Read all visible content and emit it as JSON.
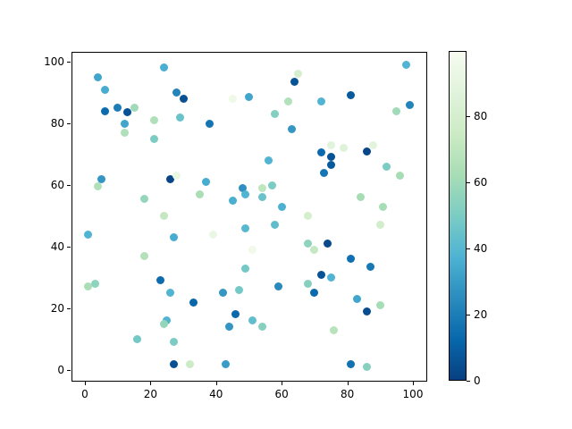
{
  "chart_data": {
    "type": "scatter",
    "title": "",
    "xlabel": "",
    "ylabel": "",
    "xlim": [
      -4.1,
      104.3
    ],
    "ylim": [
      -3.8,
      103.2
    ],
    "grid": false,
    "x_ticks": [
      "0",
      "20",
      "40",
      "60",
      "80",
      "100"
    ],
    "x_tick_values": [
      0,
      20,
      40,
      60,
      80,
      100
    ],
    "y_ticks": [
      "0",
      "20",
      "40",
      "60",
      "80",
      "100"
    ],
    "y_tick_values": [
      0,
      20,
      40,
      60,
      80,
      100
    ],
    "colorbar": {
      "ticks": [
        "0",
        "20",
        "40",
        "60",
        "80"
      ],
      "tick_values": [
        0,
        20,
        40,
        60,
        80
      ],
      "vmin": 0,
      "vmax": 99.6,
      "colormap": "GnBu_r",
      "stops": [
        {
          "p": 0.0,
          "c": "#084081"
        },
        {
          "p": 0.125,
          "c": "#0868ac"
        },
        {
          "p": 0.25,
          "c": "#2b8cbe"
        },
        {
          "p": 0.375,
          "c": "#4eb3d3"
        },
        {
          "p": 0.5,
          "c": "#7bccc4"
        },
        {
          "p": 0.625,
          "c": "#a8ddb5"
        },
        {
          "p": 0.75,
          "c": "#ccebc5"
        },
        {
          "p": 0.875,
          "c": "#e0f3db"
        },
        {
          "p": 1.0,
          "c": "#f7fcf0"
        }
      ]
    },
    "points": [
      [
        4,
        95,
        33
      ],
      [
        6,
        91,
        35
      ],
      [
        24,
        98,
        36
      ],
      [
        28,
        90,
        22
      ],
      [
        30,
        88,
        5
      ],
      [
        6,
        84,
        14
      ],
      [
        10,
        85,
        20
      ],
      [
        13,
        83.5,
        6
      ],
      [
        15,
        85,
        60
      ],
      [
        12,
        80,
        33
      ],
      [
        12,
        77,
        65
      ],
      [
        21,
        81,
        65
      ],
      [
        29,
        82,
        45
      ],
      [
        21,
        75,
        50
      ],
      [
        45,
        88,
        95
      ],
      [
        50,
        88.5,
        33
      ],
      [
        38,
        80,
        17
      ],
      [
        65,
        96,
        80
      ],
      [
        64,
        93.5,
        6
      ],
      [
        62,
        87,
        66
      ],
      [
        58,
        83,
        52
      ],
      [
        72,
        87,
        38
      ],
      [
        81,
        89,
        8
      ],
      [
        98,
        99,
        38
      ],
      [
        99,
        86,
        22
      ],
      [
        95,
        84,
        60
      ],
      [
        63,
        78,
        28
      ],
      [
        56,
        68,
        38
      ],
      [
        72,
        70.5,
        13
      ],
      [
        75,
        69,
        6
      ],
      [
        75,
        66.5,
        8
      ],
      [
        73,
        64,
        17
      ],
      [
        75,
        73,
        87
      ],
      [
        79,
        72,
        86
      ],
      [
        86,
        71,
        2
      ],
      [
        88,
        73,
        88
      ],
      [
        92,
        66,
        50
      ],
      [
        96,
        63,
        62
      ],
      [
        5,
        62,
        28
      ],
      [
        4,
        59.5,
        65
      ],
      [
        1,
        44,
        38
      ],
      [
        26,
        62,
        2
      ],
      [
        28,
        63,
        92
      ],
      [
        37,
        61,
        35
      ],
      [
        35,
        57,
        63
      ],
      [
        18,
        55.5,
        57
      ],
      [
        24,
        50,
        72
      ],
      [
        27,
        43,
        35
      ],
      [
        39,
        44,
        93
      ],
      [
        18,
        37,
        66
      ],
      [
        48,
        59,
        26
      ],
      [
        49,
        57,
        38
      ],
      [
        45,
        55,
        36
      ],
      [
        54,
        59,
        70
      ],
      [
        54,
        56,
        45
      ],
      [
        57,
        60,
        50
      ],
      [
        60,
        53,
        37
      ],
      [
        49,
        46,
        40
      ],
      [
        58,
        47,
        42
      ],
      [
        68,
        50,
        80
      ],
      [
        84,
        56,
        62
      ],
      [
        91,
        53,
        62
      ],
      [
        90,
        47,
        78
      ],
      [
        68,
        41,
        55
      ],
      [
        70,
        39,
        72
      ],
      [
        74,
        41,
        3
      ],
      [
        81,
        36,
        15
      ],
      [
        87,
        33.5,
        18
      ],
      [
        49,
        33,
        48
      ],
      [
        51,
        39,
        96
      ],
      [
        1,
        27,
        63
      ],
      [
        3,
        28,
        55
      ],
      [
        23,
        29,
        14
      ],
      [
        26,
        25,
        38
      ],
      [
        33,
        22,
        12
      ],
      [
        42,
        25,
        28
      ],
      [
        47,
        26,
        48
      ],
      [
        46,
        18,
        13
      ],
      [
        44,
        14,
        28
      ],
      [
        25,
        16,
        38
      ],
      [
        24,
        15,
        57
      ],
      [
        16,
        10,
        48
      ],
      [
        27,
        9,
        50
      ],
      [
        27,
        2,
        5
      ],
      [
        32,
        2,
        75
      ],
      [
        43,
        2,
        30
      ],
      [
        59,
        27,
        24
      ],
      [
        68,
        28,
        53
      ],
      [
        72,
        31,
        6
      ],
      [
        75,
        30,
        38
      ],
      [
        70,
        25,
        13
      ],
      [
        83,
        23,
        33
      ],
      [
        90,
        21,
        62
      ],
      [
        86,
        19,
        4
      ],
      [
        51,
        16,
        43
      ],
      [
        54,
        14,
        53
      ],
      [
        76,
        13,
        68
      ],
      [
        81,
        2,
        16
      ],
      [
        86,
        1,
        53
      ]
    ]
  }
}
